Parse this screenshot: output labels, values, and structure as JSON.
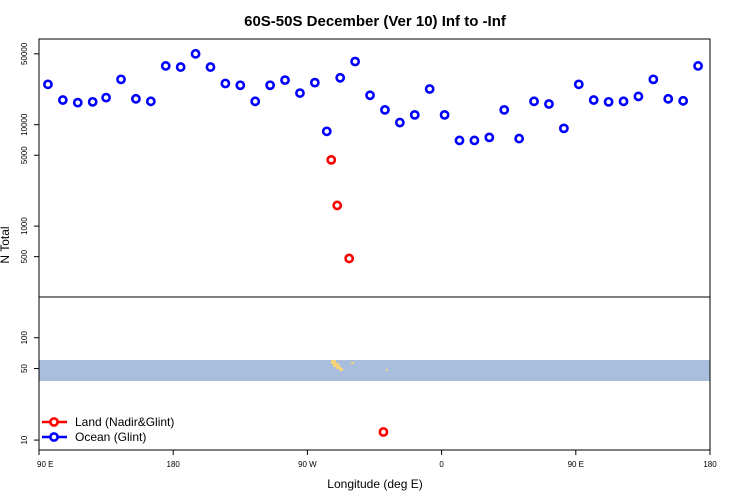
{
  "chart_data": {
    "type": "scatter",
    "title": "60S-50S December (Ver 10)   Inf to -Inf",
    "xlabel": "Longitude (deg E)",
    "ylabel": "N Total",
    "x_ticks": [
      {
        "value": 90,
        "label": "90 E"
      },
      {
        "value": 180,
        "label": "180"
      },
      {
        "value": 270,
        "label": "90 W"
      },
      {
        "value": 360,
        "label": "0"
      },
      {
        "value": 450,
        "label": "90 E"
      },
      {
        "value": 540,
        "label": "180"
      }
    ],
    "xlim": [
      90,
      540
    ],
    "top_panel": {
      "scale": "log",
      "ylim": [
        200,
        70000
      ],
      "y_ticks": [
        {
          "value": 500,
          "label": "500"
        },
        {
          "value": 1000,
          "label": "1000"
        },
        {
          "value": 5000,
          "label": "5000"
        },
        {
          "value": 10000,
          "label": "10000"
        },
        {
          "value": 50000,
          "label": "50000"
        }
      ]
    },
    "bottom_panel": {
      "scale": "log",
      "ylim": [
        8,
        250
      ],
      "y_ticks": [
        {
          "value": 10,
          "label": "10"
        },
        {
          "value": 50,
          "label": "50"
        },
        {
          "value": 100,
          "label": "100"
        }
      ],
      "band": {
        "lat_from": -60,
        "lat_to": -50,
        "color": "#a8bedc"
      },
      "land_color": "#f3d27a"
    },
    "series": [
      {
        "name": "Land (Nadir&Glint)",
        "color": "#ff0000",
        "points": [
          {
            "x": 286,
            "y": 4500,
            "panel": "top"
          },
          {
            "x": 290,
            "y": 1600,
            "panel": "top"
          },
          {
            "x": 298,
            "y": 480,
            "panel": "top"
          },
          {
            "x": 321,
            "y": 12,
            "panel": "bottom"
          }
        ]
      },
      {
        "name": "Ocean (Glint)",
        "color": "#0000ff",
        "points": [
          {
            "x": 96,
            "y": 25000
          },
          {
            "x": 106,
            "y": 17500
          },
          {
            "x": 116,
            "y": 16500
          },
          {
            "x": 126,
            "y": 16800
          },
          {
            "x": 135,
            "y": 18500
          },
          {
            "x": 145,
            "y": 28000
          },
          {
            "x": 155,
            "y": 18000
          },
          {
            "x": 165,
            "y": 17000
          },
          {
            "x": 175,
            "y": 38000
          },
          {
            "x": 185,
            "y": 37000
          },
          {
            "x": 195,
            "y": 50000
          },
          {
            "x": 205,
            "y": 37000
          },
          {
            "x": 215,
            "y": 25500
          },
          {
            "x": 225,
            "y": 24500
          },
          {
            "x": 235,
            "y": 17000
          },
          {
            "x": 245,
            "y": 24500
          },
          {
            "x": 255,
            "y": 27500
          },
          {
            "x": 265,
            "y": 20500
          },
          {
            "x": 275,
            "y": 26000
          },
          {
            "x": 283,
            "y": 8600
          },
          {
            "x": 292,
            "y": 29000
          },
          {
            "x": 302,
            "y": 42000
          },
          {
            "x": 312,
            "y": 19500
          },
          {
            "x": 322,
            "y": 14000
          },
          {
            "x": 332,
            "y": 10500
          },
          {
            "x": 342,
            "y": 12500
          },
          {
            "x": 352,
            "y": 22500
          },
          {
            "x": 362,
            "y": 12500
          },
          {
            "x": 372,
            "y": 7000
          },
          {
            "x": 382,
            "y": 7000
          },
          {
            "x": 392,
            "y": 7500
          },
          {
            "x": 402,
            "y": 14000
          },
          {
            "x": 412,
            "y": 7300
          },
          {
            "x": 422,
            "y": 17000
          },
          {
            "x": 432,
            "y": 16000
          },
          {
            "x": 442,
            "y": 9200
          },
          {
            "x": 452,
            "y": 25000
          },
          {
            "x": 462,
            "y": 17500
          },
          {
            "x": 472,
            "y": 16800
          },
          {
            "x": 482,
            "y": 17000
          },
          {
            "x": 492,
            "y": 19000
          },
          {
            "x": 502,
            "y": 28000
          },
          {
            "x": 512,
            "y": 18000
          },
          {
            "x": 522,
            "y": 17200
          },
          {
            "x": 532,
            "y": 38000
          }
        ]
      }
    ],
    "legend": {
      "location": "bottom-left",
      "entries": [
        "Land (Nadir&Glint)",
        "Ocean (Glint)"
      ]
    }
  }
}
